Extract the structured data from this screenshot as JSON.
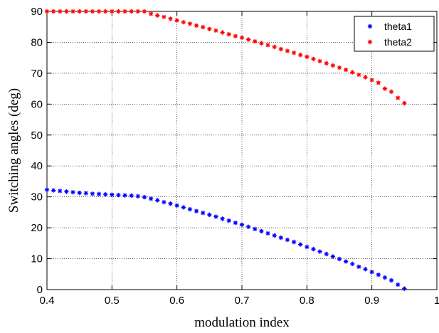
{
  "chart_data": {
    "type": "scatter",
    "xlabel": "modulation index",
    "ylabel": "Switching angles (deg)",
    "xlim": [
      0.4,
      1
    ],
    "ylim": [
      0,
      90
    ],
    "xticks": [
      "0.4",
      "0.5",
      "0.6",
      "0.7",
      "0.8",
      "0.9",
      "1"
    ],
    "yticks": [
      "0",
      "10",
      "20",
      "30",
      "40",
      "50",
      "60",
      "70",
      "80",
      "90"
    ],
    "grid": true,
    "legend_position": "top-right",
    "x": [
      0.4,
      0.41,
      0.42,
      0.43,
      0.44,
      0.45,
      0.46,
      0.47,
      0.48,
      0.49,
      0.5,
      0.51,
      0.52,
      0.53,
      0.54,
      0.55,
      0.56,
      0.57,
      0.58,
      0.59,
      0.6,
      0.61,
      0.62,
      0.63,
      0.64,
      0.65,
      0.66,
      0.67,
      0.68,
      0.69,
      0.7,
      0.71,
      0.72,
      0.73,
      0.74,
      0.75,
      0.76,
      0.77,
      0.78,
      0.79,
      0.8,
      0.81,
      0.82,
      0.83,
      0.84,
      0.85,
      0.86,
      0.87,
      0.88,
      0.89,
      0.9,
      0.91,
      0.92,
      0.93,
      0.94,
      0.95
    ],
    "series": [
      {
        "name": "theta1",
        "color": "#0000ff",
        "marker": "star",
        "values": [
          32.3,
          32.1,
          31.9,
          31.7,
          31.5,
          31.3,
          31.2,
          31.0,
          30.9,
          30.8,
          30.7,
          30.6,
          30.5,
          30.4,
          30.2,
          29.9,
          29.4,
          28.9,
          28.3,
          27.8,
          27.2,
          26.6,
          26.0,
          25.4,
          24.8,
          24.2,
          23.6,
          22.9,
          22.3,
          21.6,
          21.0,
          20.3,
          19.6,
          18.9,
          18.2,
          17.5,
          16.8,
          16.1,
          15.4,
          14.6,
          13.8,
          13.1,
          12.3,
          11.5,
          10.7,
          9.9,
          9.1,
          8.3,
          7.4,
          6.6,
          5.7,
          4.8,
          3.9,
          3.0,
          1.6,
          0.3
        ]
      },
      {
        "name": "theta2",
        "color": "#ff0000",
        "marker": "star",
        "values": [
          90,
          90,
          90,
          90,
          90,
          90,
          90,
          90,
          90,
          90,
          90,
          90,
          90,
          90,
          90,
          90,
          89.2,
          88.7,
          88.2,
          87.6,
          87.1,
          86.5,
          86.0,
          85.4,
          84.9,
          84.3,
          83.8,
          83.2,
          82.6,
          82.0,
          81.5,
          80.9,
          80.3,
          79.7,
          79.1,
          78.5,
          77.8,
          77.2,
          76.6,
          75.9,
          75.3,
          74.6,
          73.9,
          73.2,
          72.5,
          71.8,
          71.1,
          70.3,
          69.5,
          68.7,
          67.8,
          66.9,
          65.0,
          64.0,
          62.0,
          60.3
        ]
      }
    ]
  }
}
